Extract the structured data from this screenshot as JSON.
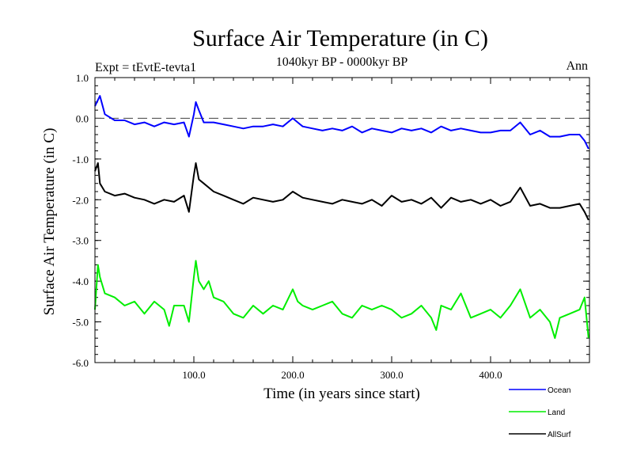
{
  "chart_data": {
    "type": "line",
    "title": "Surface Air Temperature (in C)",
    "subtitle": "1040kyr BP - 0000kyr BP",
    "experiment_label": "Expt = tEvtE-tevta1",
    "season_label": "Ann",
    "xlabel": "Time (in years since start)",
    "ylabel": "Surface Air Temperature (in C)",
    "xlim": [
      0,
      500
    ],
    "ylim": [
      -6.0,
      1.0
    ],
    "x_ticks": [
      100,
      200,
      300,
      400
    ],
    "x_tick_labels": [
      "100.0",
      "200.0",
      "300.0",
      "400.0"
    ],
    "y_ticks": [
      1,
      0,
      -1,
      -2,
      -3,
      -4,
      -5,
      -6
    ],
    "y_tick_labels": [
      "1.0",
      "0.0",
      "-1.0",
      "-2.0",
      "-3.0",
      "-4.0",
      "-5.0",
      "-6.0"
    ],
    "reference_line": 0.0,
    "legend_position": "bottom-right",
    "series": [
      {
        "name": "Ocean",
        "color": "#0000ff",
        "x": [
          0,
          5,
          10,
          20,
          30,
          40,
          50,
          60,
          70,
          80,
          90,
          95,
          100,
          102,
          105,
          110,
          120,
          130,
          140,
          150,
          160,
          170,
          180,
          190,
          200,
          205,
          210,
          220,
          230,
          240,
          250,
          260,
          270,
          280,
          290,
          300,
          310,
          320,
          330,
          340,
          350,
          360,
          370,
          380,
          390,
          400,
          410,
          420,
          430,
          440,
          450,
          460,
          470,
          480,
          490,
          495,
          499
        ],
        "values": [
          0.3,
          0.55,
          0.1,
          -0.05,
          -0.05,
          -0.15,
          -0.1,
          -0.2,
          -0.1,
          -0.15,
          -0.1,
          -0.45,
          0.1,
          0.4,
          0.2,
          -0.1,
          -0.1,
          -0.15,
          -0.2,
          -0.25,
          -0.2,
          -0.2,
          -0.15,
          -0.2,
          0.0,
          -0.1,
          -0.2,
          -0.25,
          -0.3,
          -0.25,
          -0.3,
          -0.2,
          -0.35,
          -0.25,
          -0.3,
          -0.35,
          -0.25,
          -0.3,
          -0.25,
          -0.35,
          -0.2,
          -0.3,
          -0.25,
          -0.3,
          -0.35,
          -0.35,
          -0.3,
          -0.3,
          -0.1,
          -0.4,
          -0.3,
          -0.45,
          -0.45,
          -0.4,
          -0.4,
          -0.55,
          -0.75
        ]
      },
      {
        "name": "Land",
        "color": "#00ee00",
        "x": [
          0,
          3,
          5,
          10,
          20,
          30,
          40,
          50,
          60,
          70,
          75,
          80,
          90,
          95,
          100,
          102,
          105,
          110,
          115,
          120,
          130,
          140,
          150,
          160,
          170,
          180,
          190,
          200,
          205,
          210,
          220,
          230,
          240,
          250,
          260,
          270,
          280,
          290,
          300,
          310,
          320,
          330,
          340,
          345,
          350,
          360,
          370,
          380,
          390,
          400,
          410,
          420,
          430,
          440,
          450,
          460,
          465,
          470,
          480,
          490,
          495,
          499
        ],
        "values": [
          -4.7,
          -3.6,
          -3.9,
          -4.3,
          -4.4,
          -4.6,
          -4.5,
          -4.8,
          -4.5,
          -4.7,
          -5.1,
          -4.6,
          -4.6,
          -5.0,
          -3.9,
          -3.5,
          -4.0,
          -4.2,
          -4.0,
          -4.4,
          -4.5,
          -4.8,
          -4.9,
          -4.6,
          -4.8,
          -4.6,
          -4.7,
          -4.2,
          -4.5,
          -4.6,
          -4.7,
          -4.6,
          -4.5,
          -4.8,
          -4.9,
          -4.6,
          -4.7,
          -4.6,
          -4.7,
          -4.9,
          -4.8,
          -4.6,
          -4.9,
          -5.2,
          -4.6,
          -4.7,
          -4.3,
          -4.9,
          -4.8,
          -4.7,
          -4.9,
          -4.6,
          -4.2,
          -4.9,
          -4.7,
          -5.0,
          -5.4,
          -4.9,
          -4.8,
          -4.7,
          -4.4,
          -5.4
        ]
      },
      {
        "name": "AllSurf",
        "color": "#000000",
        "x": [
          0,
          3,
          5,
          10,
          20,
          30,
          40,
          50,
          60,
          70,
          80,
          90,
          95,
          100,
          102,
          105,
          110,
          120,
          130,
          140,
          150,
          160,
          170,
          180,
          190,
          200,
          210,
          220,
          230,
          240,
          250,
          260,
          270,
          280,
          290,
          300,
          310,
          320,
          330,
          340,
          350,
          360,
          370,
          380,
          390,
          400,
          410,
          420,
          430,
          440,
          450,
          460,
          470,
          480,
          490,
          495,
          499
        ],
        "values": [
          -1.3,
          -1.1,
          -1.6,
          -1.8,
          -1.9,
          -1.85,
          -1.95,
          -2.0,
          -2.1,
          -2.0,
          -2.05,
          -1.9,
          -2.3,
          -1.4,
          -1.1,
          -1.5,
          -1.6,
          -1.8,
          -1.9,
          -2.0,
          -2.1,
          -1.95,
          -2.0,
          -2.05,
          -2.0,
          -1.8,
          -1.95,
          -2.0,
          -2.05,
          -2.1,
          -2.0,
          -2.05,
          -2.1,
          -2.0,
          -2.15,
          -1.9,
          -2.05,
          -2.0,
          -2.1,
          -1.95,
          -2.2,
          -1.95,
          -2.05,
          -2.0,
          -2.1,
          -2.0,
          -2.15,
          -2.05,
          -1.7,
          -2.15,
          -2.1,
          -2.2,
          -2.2,
          -2.15,
          -2.1,
          -2.3,
          -2.5
        ]
      }
    ]
  }
}
